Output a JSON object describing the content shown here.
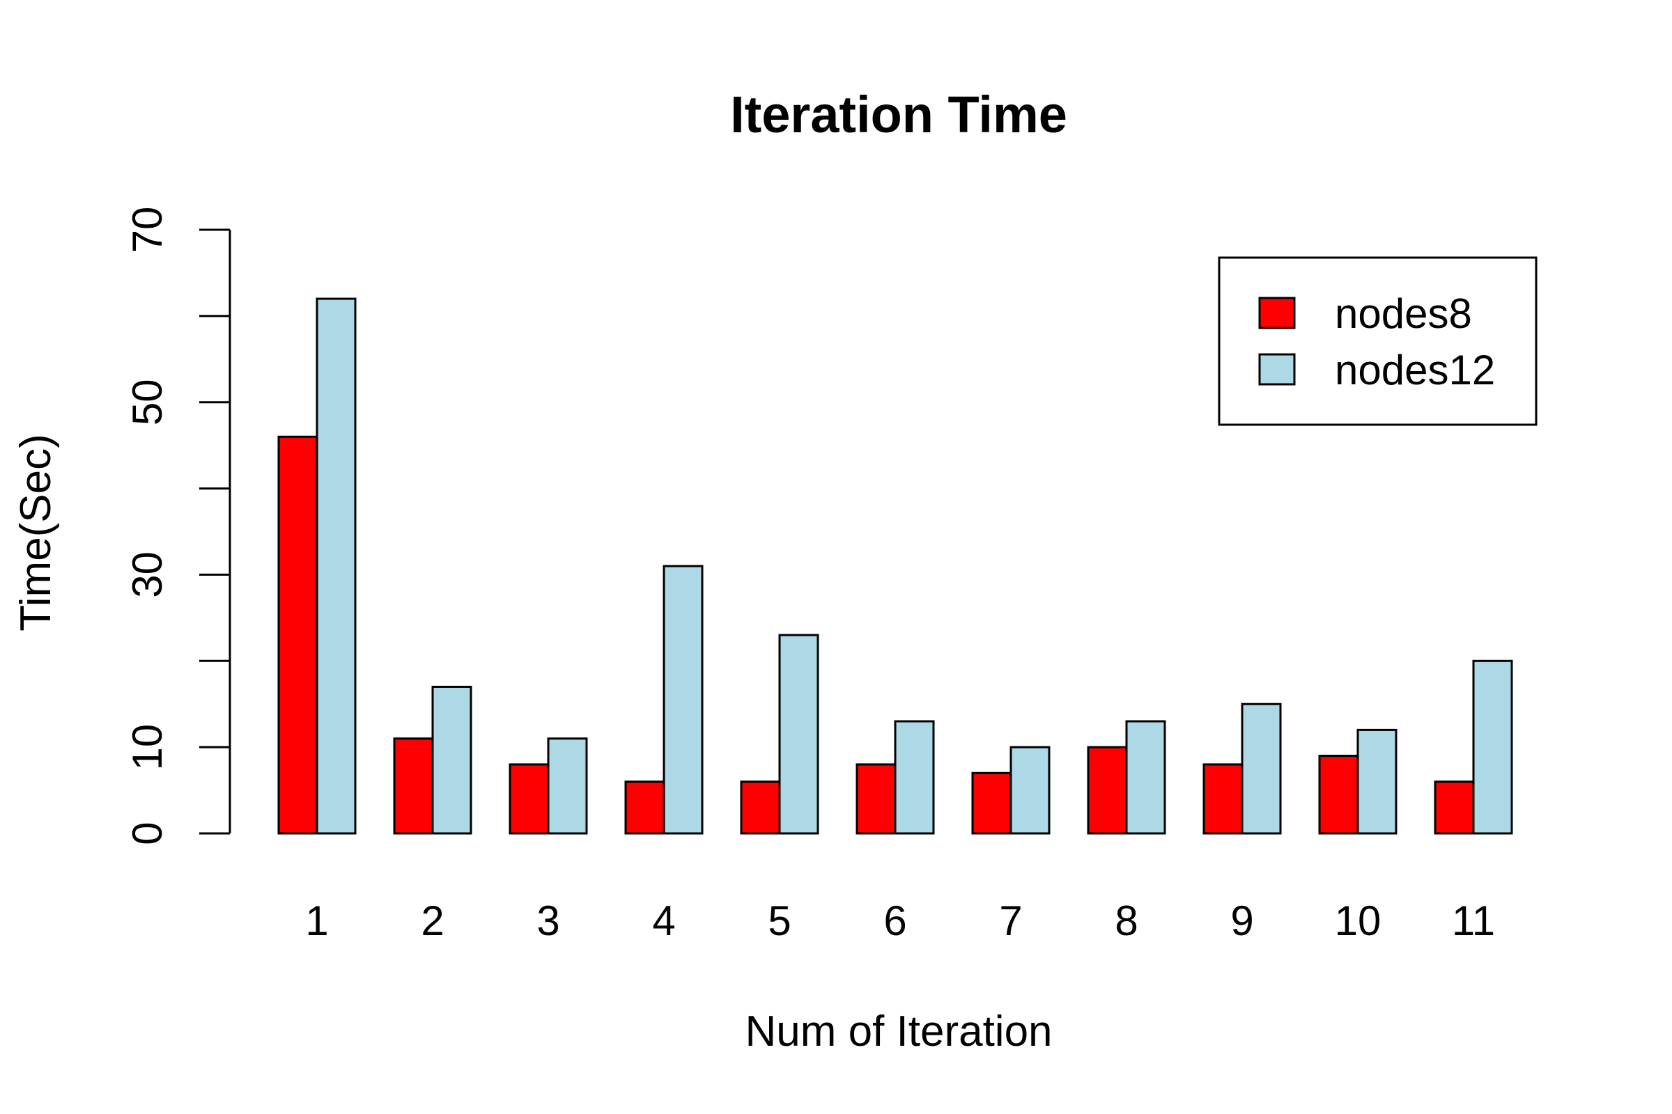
{
  "chart_data": {
    "type": "bar",
    "title": "Iteration Time",
    "xlabel": "Num of Iteration",
    "ylabel": "Time(Sec)",
    "ylim": [
      0,
      70
    ],
    "y_tick_labels": [
      "0",
      "10",
      "30",
      "50",
      "70"
    ],
    "y_tick_marks": [
      0,
      10,
      20,
      30,
      40,
      50,
      60,
      70
    ],
    "categories": [
      "1",
      "2",
      "3",
      "4",
      "5",
      "6",
      "7",
      "8",
      "9",
      "10",
      "11"
    ],
    "series": [
      {
        "name": "nodes8",
        "color": "#ff0000",
        "values": [
          46,
          11,
          8,
          6,
          6,
          8,
          7,
          10,
          8,
          9,
          6
        ]
      },
      {
        "name": "nodes12",
        "color": "#add8e6",
        "values": [
          62,
          17,
          11,
          31,
          23,
          13,
          10,
          13,
          15,
          12,
          20
        ]
      }
    ],
    "legend": {
      "position": "top-right"
    },
    "grid": false
  }
}
